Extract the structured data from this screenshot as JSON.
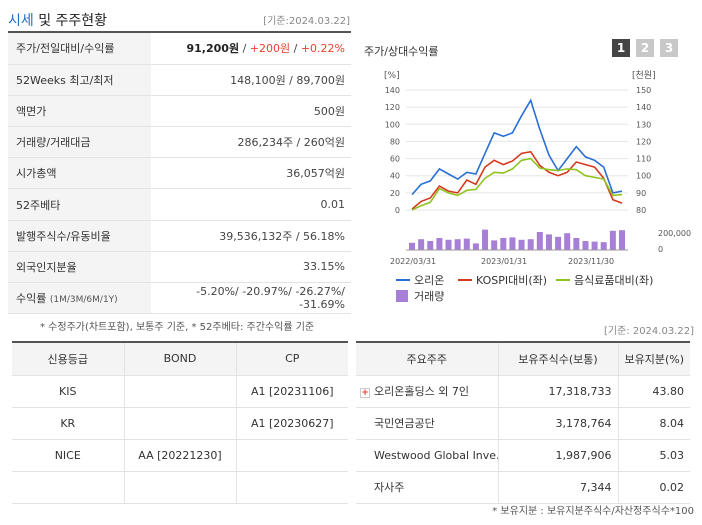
{
  "header": {
    "title_a": "시세",
    "title_b": " 및 주주현황",
    "date": "[기준:2024.03.22]"
  },
  "info_rows": [
    {
      "label": "주가/전일대비/수익률"
    },
    {
      "label": "52Weeks 최고/최저",
      "value": "148,100원 / 89,700원"
    },
    {
      "label": "액면가",
      "value": "500원"
    },
    {
      "label": "거래량/거래대금",
      "value": "286,234주 / 260억원"
    },
    {
      "label": "시가총액",
      "value": "36,057억원"
    },
    {
      "label": "52주베타",
      "value": "0.01"
    },
    {
      "label": "발행주식수/유동비율",
      "value": "39,536,132주 / 56.18%"
    },
    {
      "label": "외국인지분율",
      "value": "33.15%"
    },
    {
      "label": "수익률",
      "label_small": "(1M/3M/6M/1Y)",
      "value": "-5.20%/ -20.97%/ -26.27%/ -31.69%"
    }
  ],
  "price": {
    "price": "91,200원",
    "change": "+200원",
    "rate": "+0.22%",
    "sep": " / "
  },
  "note1": "* 수정주가(차트포함), 보통주 기준, * 52주베타: 주간수익률 기준",
  "date2": "[기준: 2024.03.22]",
  "chart": {
    "title": "주가/상대수익률",
    "tabs": [
      "1",
      "2",
      "3"
    ],
    "left_unit": "[%]",
    "right_unit": "[천원]",
    "left_ticks": [
      "140",
      "120",
      "100",
      "80",
      "60",
      "40",
      "20",
      "0"
    ],
    "right_ticks": [
      "150",
      "140",
      "130",
      "120",
      "110",
      "100",
      "90",
      "80"
    ],
    "vol_tick_top": "200,000",
    "vol_tick_bottom": "0",
    "x_labels": [
      "2022/03/31",
      "2023/01/31",
      "2023/11/30"
    ],
    "legend": {
      "orion": "오리온",
      "kospi": "KOSPI대비(좌)",
      "food": "음식료품대비(좌)",
      "volume": "거래량"
    },
    "colors": {
      "orion": "#2a6fd6",
      "kospi": "#d63a1e",
      "food": "#8fc31f",
      "volume": "#a77fd6"
    }
  },
  "chart_data": {
    "type": "line",
    "left_ylim": [
      0,
      140
    ],
    "right_ylim": [
      80,
      150
    ],
    "vol_ylim": [
      0,
      200000
    ],
    "series": [
      {
        "name": "오리온",
        "axis": "right",
        "values": [
          89,
          95,
          97,
          104,
          101,
          98,
          102,
          101,
          113,
          125,
          123,
          125,
          135,
          144,
          127,
          112,
          103,
          110,
          117,
          111,
          109,
          105,
          90,
          91
        ]
      },
      {
        "name": "KOSPI대비(좌)",
        "axis": "left",
        "values": [
          1,
          10,
          14,
          28,
          22,
          20,
          35,
          30,
          50,
          58,
          53,
          57,
          66,
          68,
          52,
          44,
          40,
          44,
          56,
          53,
          50,
          37,
          12,
          8
        ]
      },
      {
        "name": "음식료품대비(좌)",
        "axis": "left",
        "values": [
          0,
          5,
          9,
          25,
          20,
          17,
          23,
          24,
          37,
          44,
          43,
          48,
          58,
          60,
          49,
          47,
          46,
          48,
          47,
          40,
          38,
          36,
          17,
          18
        ]
      },
      {
        "name": "거래량",
        "axis": "volume",
        "values": [
          60000,
          90000,
          75000,
          100000,
          85000,
          90000,
          95000,
          55000,
          170000,
          80000,
          100000,
          105000,
          85000,
          90000,
          150000,
          130000,
          110000,
          140000,
          100000,
          75000,
          70000,
          65000,
          160000,
          165000
        ]
      }
    ]
  },
  "credit": {
    "headers": [
      "신용등급",
      "BOND",
      "CP"
    ],
    "rows": [
      [
        "KIS",
        "",
        "A1 [20231106]"
      ],
      [
        "KR",
        "",
        "A1 [20230627]"
      ],
      [
        "NICE",
        "AA [20221230]",
        ""
      ],
      [
        "",
        "",
        ""
      ]
    ]
  },
  "holders": {
    "headers": [
      "주요주주",
      "보유주식수(보통)",
      "보유지분(%)"
    ],
    "rows": [
      [
        "오리온홀딩스 외 7인",
        "17,318,733",
        "43.80"
      ],
      [
        "국민연금공단",
        "3,178,764",
        "8.04"
      ],
      [
        "Westwood Global Inve…",
        "1,987,906",
        "5.03"
      ],
      [
        "자사주",
        "7,344",
        "0.02"
      ]
    ]
  },
  "note2": "* 보유지분 : 보유지분주식수/자산정주식수*100"
}
